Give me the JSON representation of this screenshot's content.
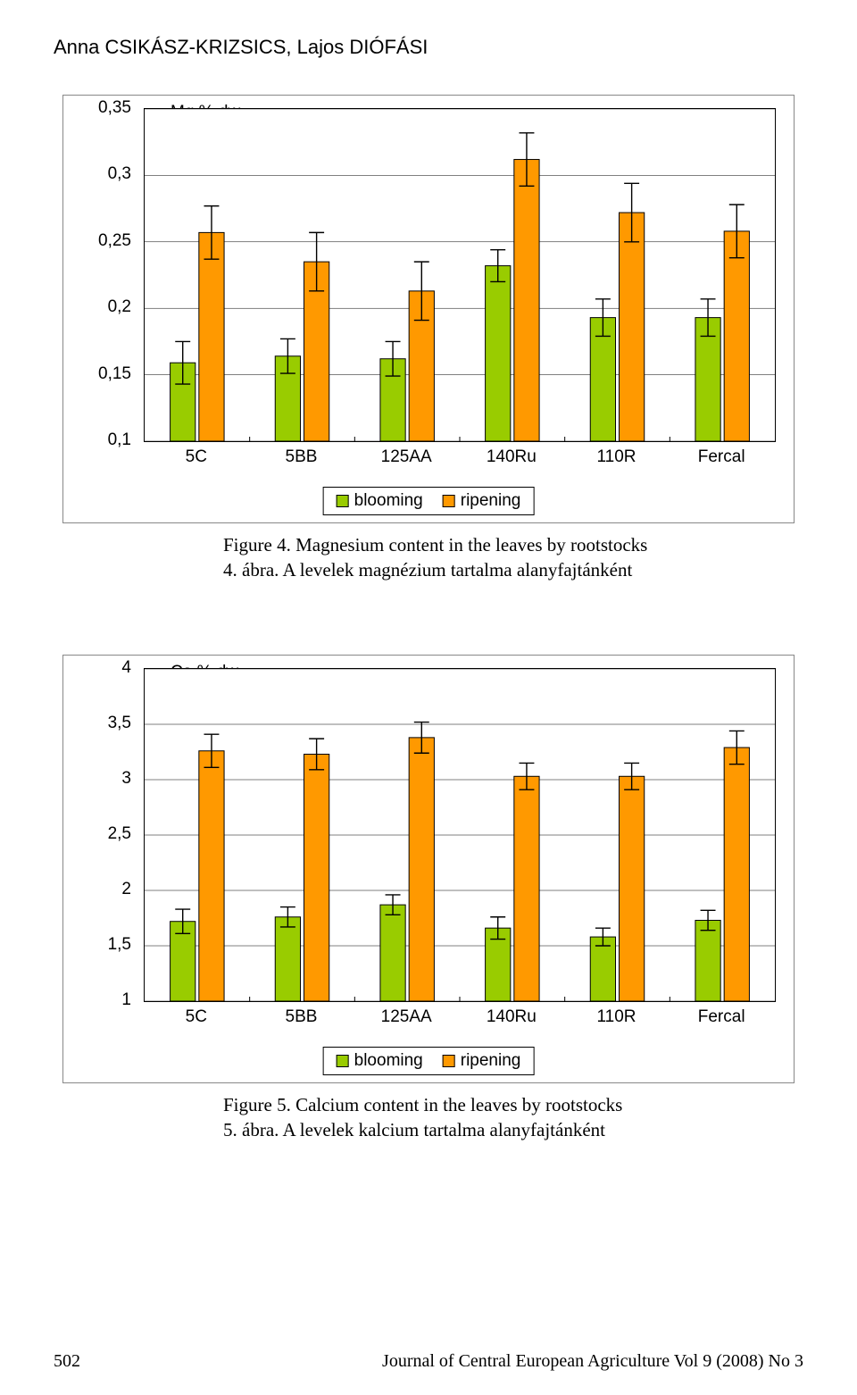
{
  "author_line": "Anna CSIKÁSZ-KRIZSICS, Lajos DIÓFÁSI",
  "page_number": "502",
  "journal": "Journal of Central European Agriculture Vol 9 (2008) No 3",
  "legend": {
    "blooming": "blooming",
    "ripening": "ripening",
    "blooming_color": "#99cc00",
    "ripening_color": "#ff9900"
  },
  "chart1": {
    "type": "bar",
    "title": "Mg % dw",
    "categories": [
      "5C",
      "5BB",
      "125AA",
      "140Ru",
      "110R",
      "Fercal"
    ],
    "ymin": 0.1,
    "ymax": 0.35,
    "yticks": [
      "0,1",
      "0,15",
      "0,2",
      "0,25",
      "0,3",
      "0,35"
    ],
    "ytick_vals": [
      0.1,
      0.15,
      0.2,
      0.25,
      0.3,
      0.35
    ],
    "blooming": {
      "values": [
        0.159,
        0.164,
        0.162,
        0.232,
        0.193,
        0.193
      ],
      "err": [
        0.016,
        0.013,
        0.013,
        0.012,
        0.014,
        0.014
      ]
    },
    "ripening": {
      "values": [
        0.257,
        0.235,
        0.213,
        0.312,
        0.272,
        0.258
      ],
      "err": [
        0.02,
        0.022,
        0.022,
        0.02,
        0.022,
        0.02
      ]
    },
    "caption_en": "Figure 4. Magnesium content in the leaves by rootstocks",
    "caption_hu": "4. ábra. A levelek magnézium tartalma alanyfajtánként",
    "bar_border": "#000000",
    "grid_color": "#000000",
    "background": "#ffffff"
  },
  "chart2": {
    "type": "bar",
    "title": "Ca % dw",
    "categories": [
      "5C",
      "5BB",
      "125AA",
      "140Ru",
      "110R",
      "Fercal"
    ],
    "ymin": 1,
    "ymax": 4,
    "yticks": [
      "1",
      "1,5",
      "2",
      "2,5",
      "3",
      "3,5",
      "4"
    ],
    "ytick_vals": [
      1,
      1.5,
      2,
      2.5,
      3,
      3.5,
      4
    ],
    "blooming": {
      "values": [
        1.72,
        1.76,
        1.87,
        1.66,
        1.58,
        1.73
      ],
      "err": [
        0.11,
        0.09,
        0.09,
        0.1,
        0.08,
        0.09
      ]
    },
    "ripening": {
      "values": [
        3.26,
        3.23,
        3.38,
        3.03,
        3.03,
        3.29
      ],
      "err": [
        0.15,
        0.14,
        0.14,
        0.12,
        0.12,
        0.15
      ]
    },
    "caption_en": "Figure 5. Calcium content in the leaves by rootstocks",
    "caption_hu": "5. ábra. A levelek kalcium tartalma alanyfajtánként",
    "bar_border": "#000000",
    "grid_color": "#000000",
    "background": "#ffffff"
  }
}
